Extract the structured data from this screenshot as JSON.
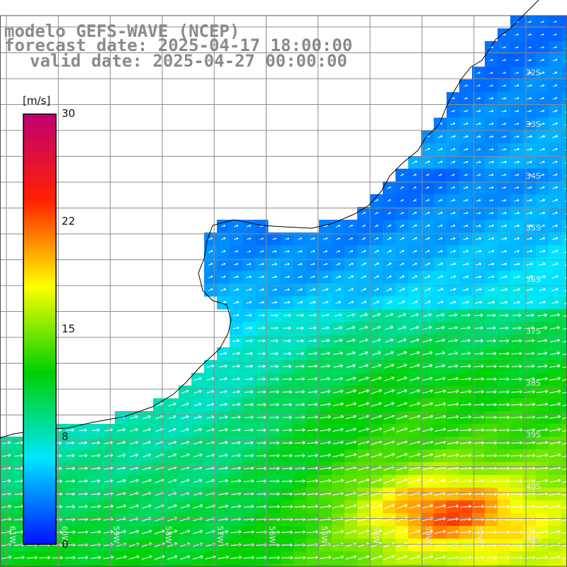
{
  "title": {
    "model": "modelo GEFS-WAVE (NCEP)",
    "forecast": "forecast date: 2025-04-17 18:00:00",
    "valid": "valid date: 2025-04-27 00:00:00"
  },
  "colorbar": {
    "unit": "[m/s]",
    "ticks": [
      "0",
      "8",
      "15",
      "22",
      "30"
    ],
    "colors": [
      "#0010ff",
      "#00e6ff",
      "#00d000",
      "#ffff00",
      "#ff2000",
      "#c00070"
    ]
  },
  "map": {
    "lat_labels": [
      "32S",
      "33S",
      "34S",
      "35S",
      "36S",
      "37S",
      "38S",
      "39S",
      "40S",
      "41S"
    ],
    "lon_labels": [
      "61W",
      "60W",
      "59W",
      "58W",
      "57W",
      "56W",
      "55W",
      "54W",
      "53W",
      "52W",
      "51W"
    ],
    "land_color": "#ffffff",
    "grid_color": "#8c8c8c",
    "coast_color": "#000000"
  }
}
